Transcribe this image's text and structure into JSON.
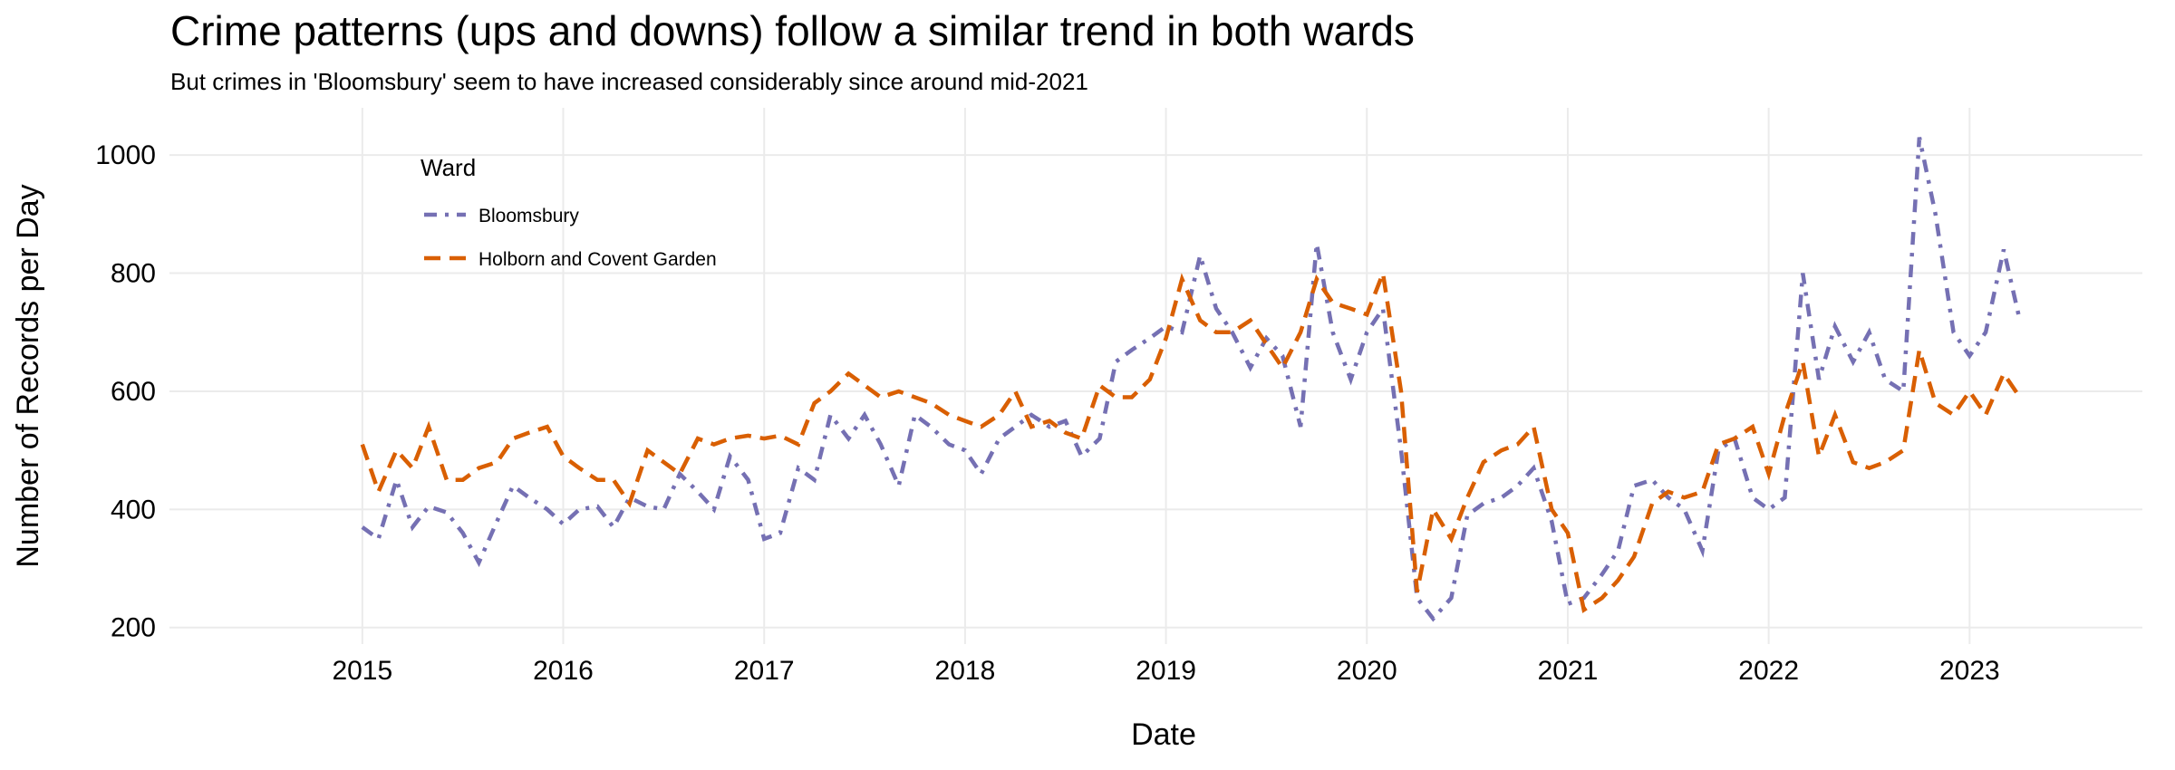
{
  "chart_data": {
    "type": "line",
    "title": "Crime patterns (ups and downs) follow a similar trend in both wards",
    "subtitle": "But crimes in 'Bloomsbury' seem to have increased considerably since around mid-2021",
    "x_label": "Date",
    "y_label": "Number of Records per Day",
    "legend_title": "Ward",
    "legend_position": "top-left",
    "grid": true,
    "x": [
      2015.0,
      2015.08,
      2015.17,
      2015.25,
      2015.33,
      2015.42,
      2015.5,
      2015.58,
      2015.67,
      2015.75,
      2015.83,
      2015.92,
      2016.0,
      2016.08,
      2016.17,
      2016.25,
      2016.33,
      2016.42,
      2016.5,
      2016.58,
      2016.67,
      2016.75,
      2016.83,
      2016.92,
      2017.0,
      2017.08,
      2017.17,
      2017.25,
      2017.33,
      2017.42,
      2017.5,
      2017.58,
      2017.67,
      2017.75,
      2017.83,
      2017.92,
      2018.0,
      2018.08,
      2018.17,
      2018.25,
      2018.33,
      2018.42,
      2018.5,
      2018.58,
      2018.67,
      2018.75,
      2018.83,
      2018.92,
      2019.0,
      2019.08,
      2019.17,
      2019.25,
      2019.33,
      2019.42,
      2019.5,
      2019.58,
      2019.67,
      2019.75,
      2019.83,
      2019.92,
      2020.0,
      2020.08,
      2020.17,
      2020.25,
      2020.33,
      2020.42,
      2020.5,
      2020.58,
      2020.67,
      2020.75,
      2020.83,
      2020.92,
      2021.0,
      2021.08,
      2021.17,
      2021.25,
      2021.33,
      2021.42,
      2021.5,
      2021.58,
      2021.67,
      2021.75,
      2021.83,
      2021.92,
      2022.0,
      2022.08,
      2022.17,
      2022.25,
      2022.33,
      2022.42,
      2022.5,
      2022.58,
      2022.67,
      2022.75,
      2022.83,
      2022.92,
      2023.0,
      2023.08,
      2023.17,
      2023.25
    ],
    "series": [
      {
        "name": "Bloomsbury",
        "color": "#7570b3",
        "dash": "dotdash",
        "values": [
          370,
          350,
          450,
          370,
          405,
          395,
          360,
          310,
          380,
          440,
          420,
          400,
          375,
          400,
          405,
          370,
          420,
          405,
          400,
          460,
          430,
          400,
          490,
          450,
          350,
          360,
          470,
          450,
          560,
          520,
          560,
          510,
          440,
          560,
          540,
          510,
          500,
          460,
          520,
          540,
          560,
          540,
          550,
          490,
          520,
          650,
          670,
          690,
          710,
          700,
          830,
          740,
          700,
          640,
          690,
          660,
          540,
          850,
          700,
          620,
          700,
          740,
          500,
          250,
          215,
          250,
          390,
          410,
          420,
          440,
          470,
          380,
          240,
          250,
          290,
          330,
          440,
          450,
          420,
          400,
          330,
          500,
          520,
          420,
          400,
          420,
          800,
          620,
          710,
          650,
          700,
          620,
          600,
          1030,
          900,
          700,
          660,
          700,
          840,
          720
        ]
      },
      {
        "name": "Holborn and Covent Garden",
        "color": "#d95f02",
        "dash": "dashed",
        "values": [
          510,
          430,
          500,
          470,
          540,
          450,
          450,
          470,
          480,
          520,
          530,
          540,
          490,
          470,
          450,
          450,
          410,
          500,
          480,
          460,
          520,
          510,
          520,
          525,
          520,
          525,
          510,
          580,
          600,
          630,
          610,
          590,
          600,
          590,
          580,
          560,
          550,
          540,
          560,
          600,
          540,
          550,
          530,
          520,
          610,
          590,
          590,
          620,
          690,
          790,
          720,
          700,
          700,
          720,
          680,
          640,
          700,
          790,
          750,
          740,
          730,
          800,
          600,
          260,
          400,
          350,
          420,
          480,
          500,
          510,
          540,
          400,
          360,
          230,
          250,
          280,
          320,
          410,
          430,
          420,
          430,
          510,
          520,
          540,
          460,
          560,
          650,
          490,
          560,
          480,
          470,
          480,
          500,
          670,
          580,
          560,
          600,
          560,
          630,
          590
        ]
      }
    ],
    "xlim": [
      2014.04,
      2023.86
    ],
    "xticks": [
      2015,
      2016,
      2017,
      2018,
      2019,
      2020,
      2021,
      2022,
      2023
    ],
    "ylim": [
      172,
      1080
    ],
    "yticks": [
      200,
      400,
      600,
      800,
      1000
    ]
  }
}
